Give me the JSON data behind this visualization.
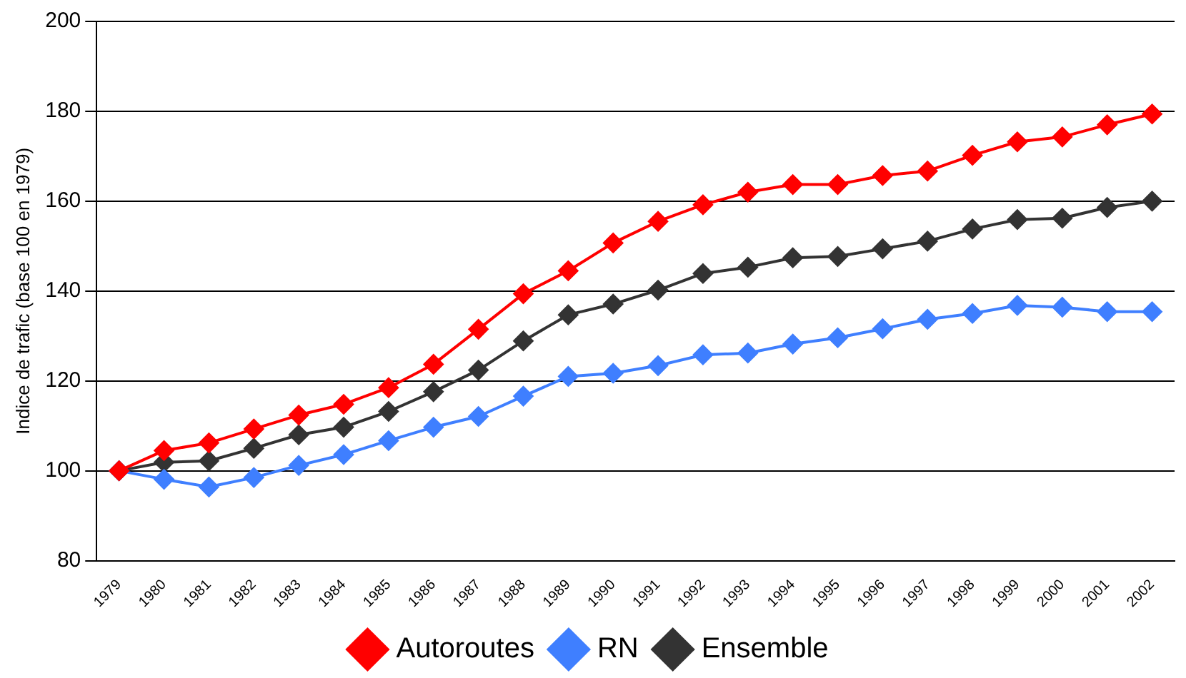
{
  "chart_data": {
    "type": "line",
    "ylabel": "Indice de trafic (base 100 en 1979)",
    "categories": [
      "1979",
      "1980",
      "1981",
      "1982",
      "1983",
      "1984",
      "1985",
      "1986",
      "1987",
      "1988",
      "1989",
      "1990",
      "1991",
      "1992",
      "1993",
      "1994",
      "1995",
      "1996",
      "1997",
      "1998",
      "1999",
      "2000",
      "2001",
      "2002"
    ],
    "series": [
      {
        "name": "Autoroutes",
        "color": "#ff0000",
        "values": [
          100,
          104.5,
          106.2,
          109.3,
          112.4,
          114.8,
          118.5,
          123.7,
          131.5,
          139.4,
          144.5,
          150.7,
          155.5,
          159.2,
          162,
          163.7,
          163.7,
          165.7,
          166.7,
          170.2,
          173.2,
          174.3,
          177,
          179.4
        ]
      },
      {
        "name": "RN",
        "color": "#3f7fff",
        "values": [
          100,
          98.1,
          96.4,
          98.5,
          101.2,
          103.6,
          106.7,
          109.7,
          112.1,
          116.6,
          121,
          121.7,
          123.4,
          125.8,
          126.2,
          128.2,
          129.6,
          131.6,
          133.7,
          135,
          136.8,
          136.4,
          135.4,
          135.4
        ]
      },
      {
        "name": "Ensemble",
        "color": "#333333",
        "values": [
          100,
          101.9,
          102.2,
          105,
          108,
          109.7,
          113.2,
          117.6,
          122.4,
          128.9,
          134.7,
          137.1,
          140.2,
          143.9,
          145.3,
          147.4,
          147.7,
          149.4,
          151.1,
          153.8,
          155.9,
          156.2,
          158.6,
          160
        ]
      }
    ],
    "ylim": [
      80,
      200
    ],
    "yticks": [
      80,
      100,
      120,
      140,
      160,
      180,
      200
    ],
    "grid": "y",
    "legend": "bottom",
    "marker": "diamond",
    "line_style": "solid"
  }
}
